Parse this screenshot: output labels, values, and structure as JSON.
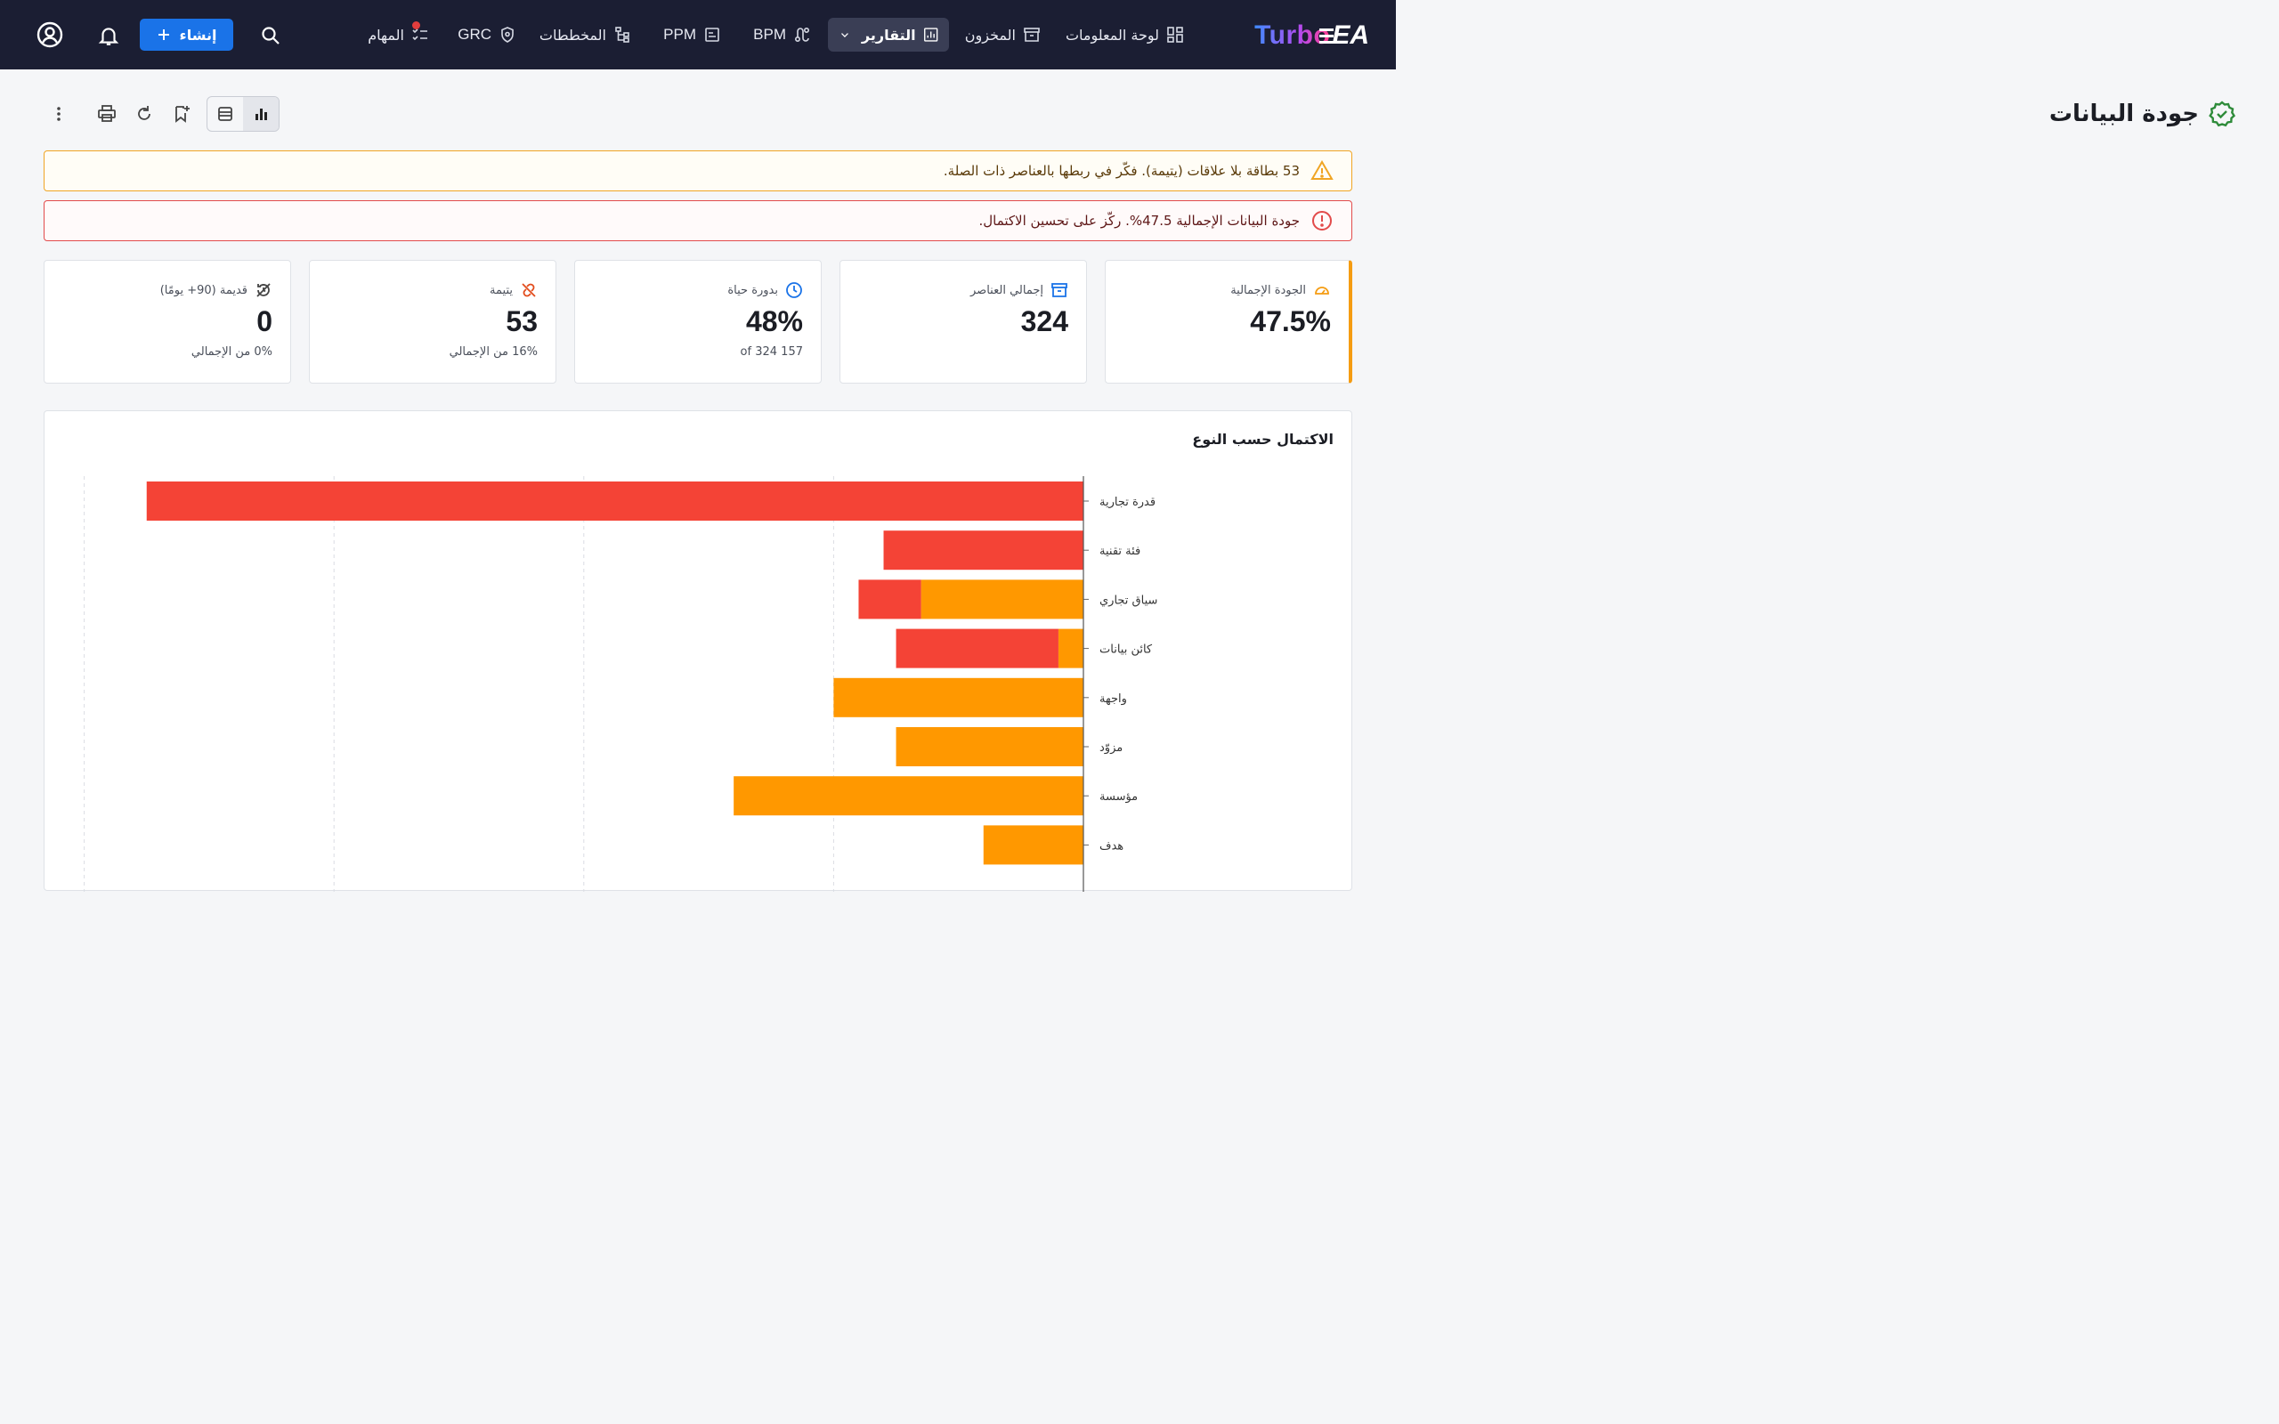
{
  "brand": {
    "name_turbo": "Turbo",
    "name_ea": "EA"
  },
  "nav": {
    "dashboard": "لوحة المعلومات",
    "inventory": "المخزون",
    "reports": "التقارير",
    "bpm": "BPM",
    "ppm": "PPM",
    "diagrams": "المخططات",
    "grc": "GRC",
    "tasks": "المهام",
    "create": "إنشاء"
  },
  "page": {
    "title": "جودة البيانات"
  },
  "alerts": {
    "warning": "53 بطاقة بلا علاقات (يتيمة). فكّر في ربطها بالعناصر ذات الصلة.",
    "error": "جودة البيانات الإجمالية 47.5%. ركّز على تحسين الاكتمال."
  },
  "kpis": {
    "overall": {
      "label": "الجودة الإجمالية",
      "value": "47.5%"
    },
    "total": {
      "label": "إجمالي العناصر",
      "value": "324"
    },
    "lifecycle": {
      "label": "بدورة حياة",
      "value": "48%",
      "sub": "157 of 324"
    },
    "orphans": {
      "label": "يتيمة",
      "value": "53",
      "sub": "16% من الإجمالي"
    },
    "stale": {
      "label": "قديمة (90+ يومًا)",
      "value": "0",
      "sub": "0% من الإجمالي"
    }
  },
  "colors": {
    "accent": "#1a73e8",
    "red": "#f44336",
    "orange": "#ff9800",
    "nav_bg": "#1b1e33"
  },
  "chart_data": {
    "type": "bar",
    "orientation": "horizontal",
    "stacked": true,
    "title": "الاكتمال حسب النوع",
    "categories": [
      "قدرة تجارية",
      "فئة تقنية",
      "سياق تجاري",
      "كائن بيانات",
      "واجهة",
      "مزوّد",
      "مؤسسة",
      "هدف"
    ],
    "series": [
      {
        "color": "#ff9800",
        "values": [
          0,
          0,
          13,
          2,
          20,
          15,
          28,
          8
        ]
      },
      {
        "color": "#f44336",
        "values": [
          75,
          16,
          5,
          13,
          0,
          0,
          0,
          0
        ]
      }
    ],
    "xlim": [
      0,
      80
    ],
    "grid": true
  }
}
